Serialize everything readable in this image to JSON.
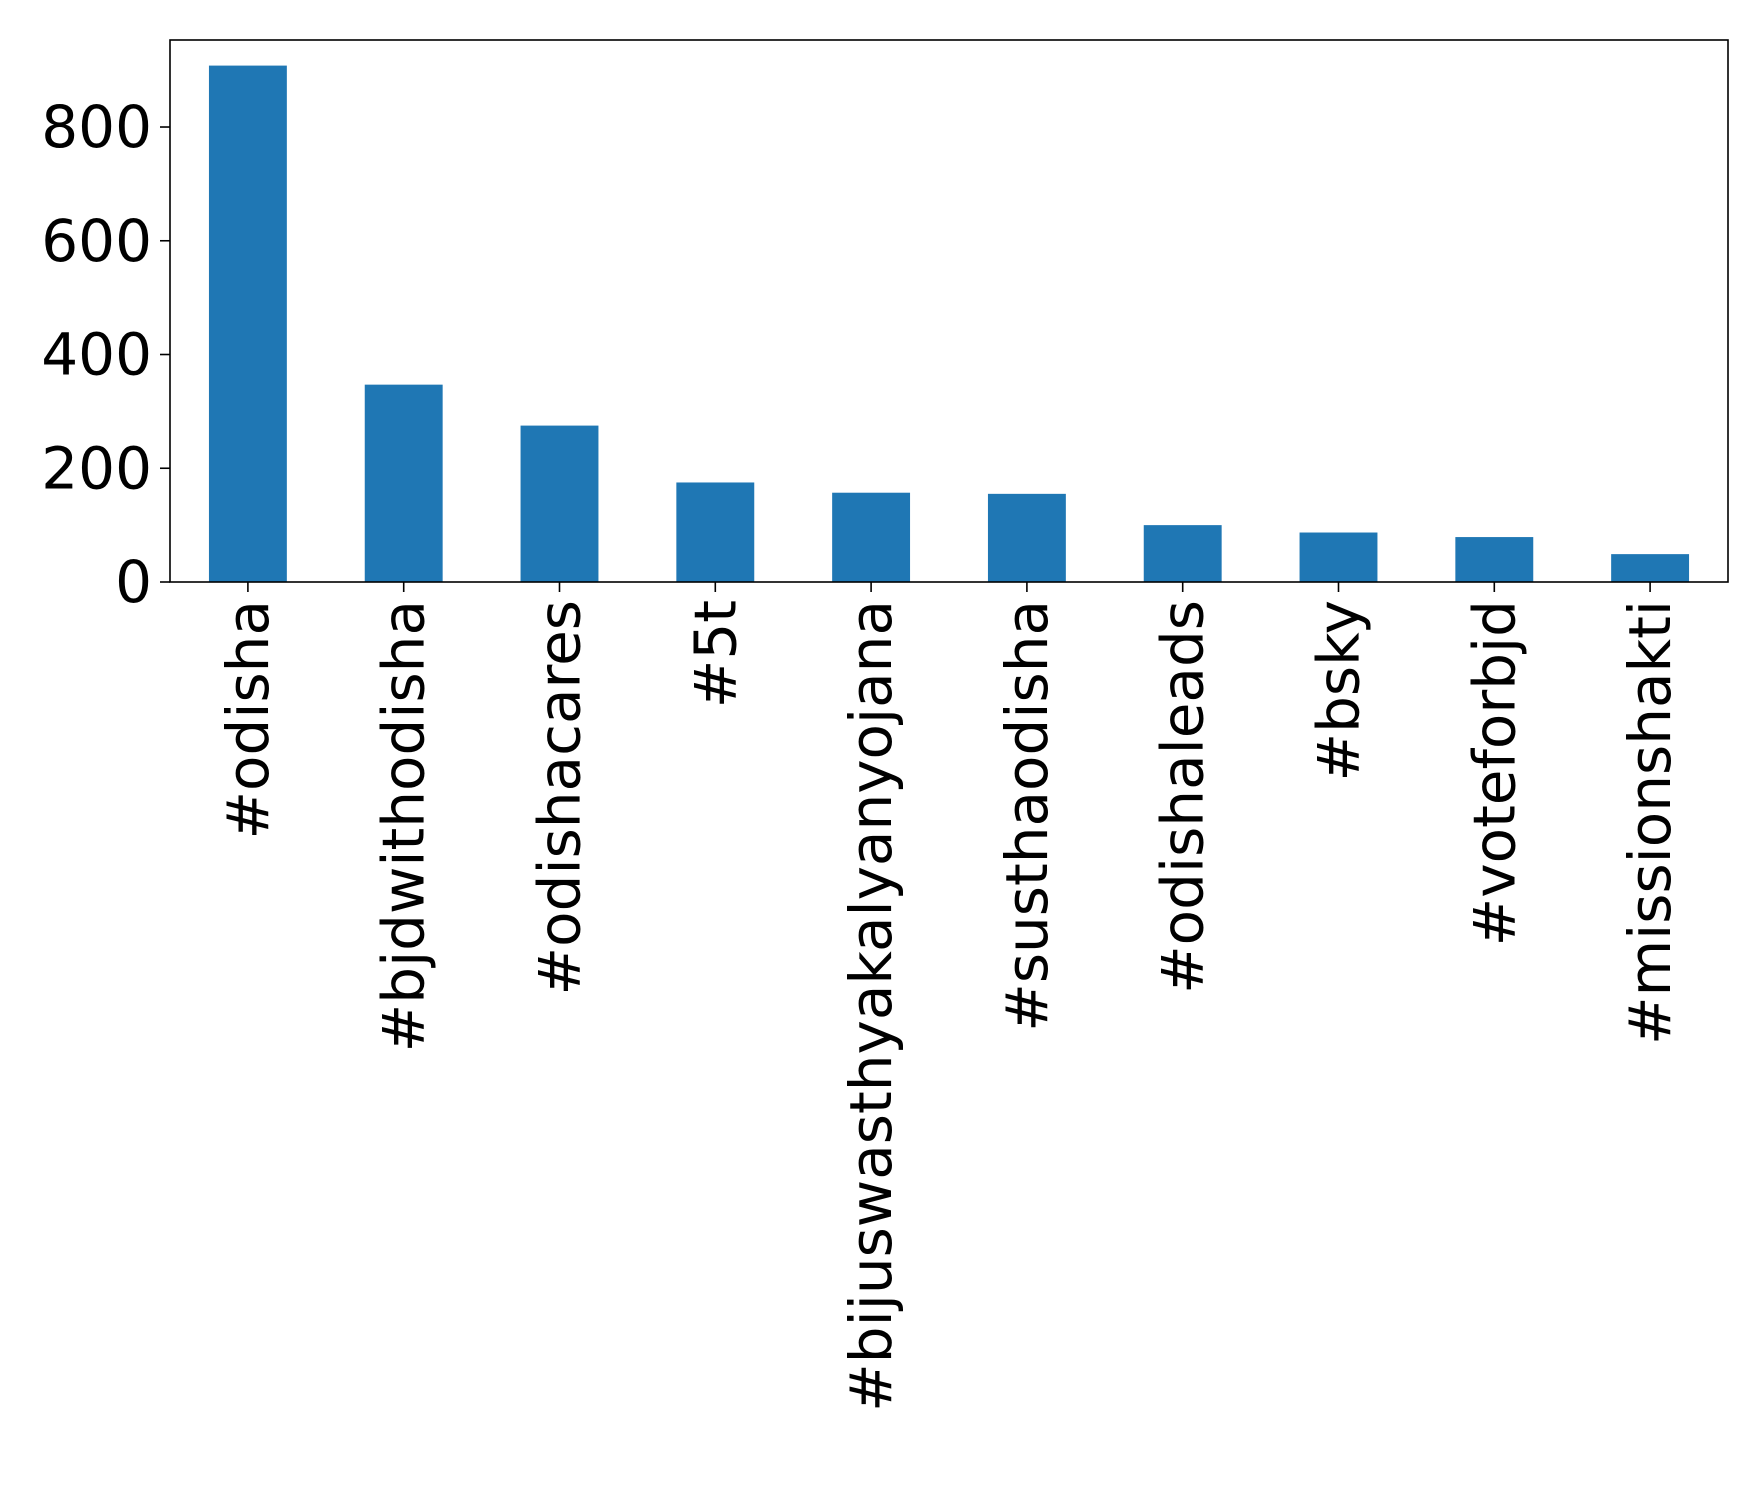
{
  "chart_data": {
    "type": "bar",
    "title": "",
    "xlabel": "",
    "ylabel": "",
    "categories": [
      "#odisha",
      "#bjdwithodisha",
      "#odishacares",
      "#5t",
      "#bijuswasthyakalyanyojana",
      "#susthaodisha",
      "#odishaleads",
      "#bsky",
      "#voteforbjd",
      "#missionshakti"
    ],
    "values": [
      908,
      347,
      275,
      175,
      157,
      155,
      100,
      87,
      79,
      49
    ],
    "ylim": [
      0,
      953
    ],
    "yticks": [
      0,
      200,
      400,
      600,
      800
    ],
    "ytick_labels": [
      "0",
      "200",
      "400",
      "600",
      "800"
    ],
    "bar_color": "#1f77b4",
    "grid": false,
    "legend": "none"
  }
}
